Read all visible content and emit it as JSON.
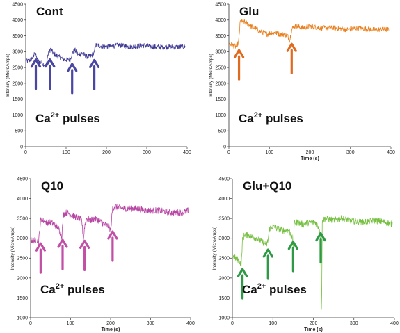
{
  "chart_data": [
    {
      "type": "line",
      "title": "Cont",
      "xlabel": "",
      "ylabel": "Intensity (MicroAmps)",
      "xlim": [
        0,
        400
      ],
      "ylim": [
        0,
        4500
      ],
      "xticks": [
        0,
        100,
        200,
        300,
        400
      ],
      "yticks": [
        0,
        500,
        1000,
        1500,
        2000,
        2500,
        3000,
        3500,
        4000,
        4500
      ],
      "color": "#3f3a94",
      "arrow_color": "#4a47a3",
      "annotation": {
        "base": "Ca",
        "sup": "2+",
        "text": "pulses"
      },
      "arrows_x": [
        25,
        60,
        115,
        170
      ],
      "series": [
        {
          "x": [
            0,
            5,
            12,
            20,
            22,
            30,
            40,
            50,
            55,
            62,
            68,
            80,
            95,
            110,
            115,
            122,
            130,
            140,
            150,
            160,
            170,
            172,
            180,
            200,
            230,
            260,
            290,
            320,
            350,
            380,
            395
          ],
          "y": [
            2700,
            2700,
            2750,
            2850,
            3000,
            2700,
            2650,
            2550,
            2900,
            3100,
            2950,
            2850,
            2750,
            2750,
            2950,
            3050,
            2900,
            2950,
            2850,
            2850,
            2950,
            3200,
            3200,
            3150,
            3200,
            3150,
            3200,
            3150,
            3150,
            3150,
            3150
          ]
        }
      ]
    },
    {
      "type": "line",
      "title": "Glu",
      "xlabel": "Time (s)",
      "ylabel": "Intensity (MicroAmps)",
      "xlim": [
        0,
        400
      ],
      "ylim": [
        0,
        4500
      ],
      "xticks": [
        0,
        100,
        200,
        300,
        400
      ],
      "yticks": [
        0,
        500,
        1000,
        1500,
        2000,
        2500,
        3000,
        3500,
        4000,
        4500
      ],
      "color": "#e8801f",
      "arrow_color": "#e06a1f",
      "annotation": {
        "base": "Ca",
        "sup": "2+",
        "text": "pulses"
      },
      "arrows_x": [
        25,
        155
      ],
      "series": [
        {
          "x": [
            0,
            10,
            18,
            24,
            28,
            35,
            45,
            55,
            65,
            75,
            85,
            95,
            105,
            115,
            125,
            135,
            145,
            150,
            155,
            160,
            170,
            180,
            200,
            230,
            260,
            290,
            320,
            350,
            380,
            395
          ],
          "y": [
            3250,
            3200,
            3150,
            3300,
            3950,
            3950,
            3900,
            3800,
            3750,
            3650,
            3600,
            3550,
            3600,
            3600,
            3550,
            3550,
            3500,
            3350,
            3700,
            3800,
            3800,
            3750,
            3800,
            3750,
            3750,
            3700,
            3750,
            3700,
            3700,
            3700
          ]
        }
      ]
    },
    {
      "type": "line",
      "title": "Q10",
      "xlabel": "Time (s)",
      "ylabel": "Intensity (MicroAmps)",
      "xlim": [
        0,
        400
      ],
      "ylim": [
        1000,
        4500
      ],
      "xticks": [
        0,
        100,
        200,
        300,
        400
      ],
      "yticks": [
        1000,
        1500,
        2000,
        2500,
        3000,
        3500,
        4000,
        4500
      ],
      "color": "#b847a4",
      "arrow_color": "#c24fa6",
      "annotation": {
        "base": "Ca",
        "sup": "2+",
        "text": "pulses"
      },
      "arrows_x": [
        25,
        80,
        135,
        205
      ],
      "series": [
        {
          "x": [
            0,
            8,
            15,
            20,
            25,
            30,
            40,
            50,
            60,
            70,
            78,
            82,
            90,
            100,
            110,
            120,
            128,
            132,
            135,
            140,
            150,
            160,
            170,
            185,
            195,
            200,
            205,
            210,
            230,
            260,
            290,
            320,
            350,
            380,
            395
          ],
          "y": [
            2950,
            2950,
            2950,
            2900,
            3450,
            3450,
            3400,
            3400,
            3350,
            3250,
            3050,
            3600,
            3650,
            3600,
            3550,
            3500,
            3450,
            2950,
            3300,
            3500,
            3450,
            3500,
            3450,
            3350,
            3300,
            3200,
            3750,
            3800,
            3750,
            3750,
            3700,
            3700,
            3650,
            3650,
            3700
          ]
        }
      ]
    },
    {
      "type": "line",
      "title": "Glu+Q10",
      "xlabel": "Time (s)",
      "ylabel": "Intensity (MicroAmps)",
      "xlim": [
        0,
        400
      ],
      "ylim": [
        1000,
        4500
      ],
      "xticks": [
        0,
        100,
        200,
        300,
        400
      ],
      "yticks": [
        1000,
        1500,
        2000,
        2500,
        3000,
        3500,
        4000,
        4500
      ],
      "color": "#77c043",
      "arrow_color": "#2f9a46",
      "annotation": {
        "base": "Ca",
        "sup": "2+",
        "text": "pulses"
      },
      "arrows_x": [
        25,
        88,
        150,
        218
      ],
      "series": [
        {
          "x": [
            0,
            8,
            15,
            22,
            25,
            30,
            45,
            60,
            75,
            85,
            88,
            92,
            100,
            110,
            125,
            140,
            148,
            150,
            153,
            160,
            175,
            190,
            205,
            215,
            218,
            220,
            222,
            230,
            250,
            270,
            290,
            320,
            350,
            380,
            395
          ],
          "y": [
            2550,
            2500,
            2450,
            2350,
            2950,
            3100,
            3050,
            3000,
            2900,
            2850,
            2950,
            3250,
            3300,
            3250,
            3200,
            3200,
            3000,
            2750,
            3400,
            3400,
            3350,
            3400,
            3400,
            3250,
            2900,
            1000,
            3450,
            3500,
            3450,
            3500,
            3450,
            3400,
            3450,
            3400,
            3350
          ]
        }
      ]
    }
  ]
}
